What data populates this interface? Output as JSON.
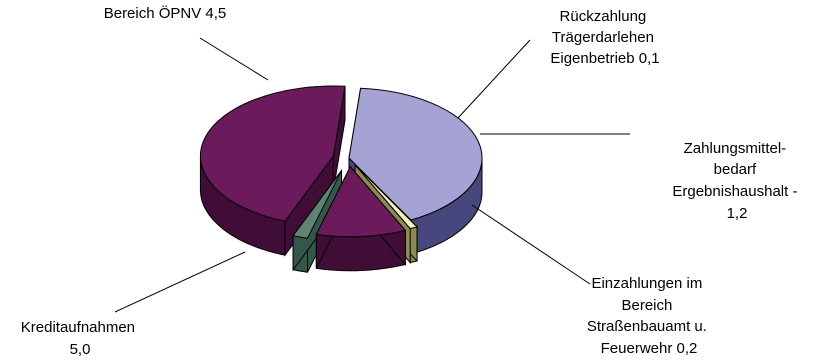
{
  "chart_data": {
    "type": "pie",
    "title": "",
    "slices": [
      {
        "lines": [
          "Bereich ÖPNV 4,5"
        ],
        "value": 4.5,
        "color": "#a5a3d3",
        "side": "#47477d"
      },
      {
        "lines": [
          "Rückzahlung",
          "Trägerdarlehen",
          "Eigenbetrieb 0,1"
        ],
        "value": 0.1,
        "color": "#f3f2bd",
        "side": "#8b8a50"
      },
      {
        "lines": [
          "Zahlungsmittel-",
          "bedarf",
          "Ergebnishaushalt  -",
          "1,2"
        ],
        "value": -1.2,
        "color": "#6b1a5c",
        "side": "#3f0d36"
      },
      {
        "lines": [
          "Einzahlungen im",
          "Bereich",
          "Straßenbauamt u.",
          "Feuerwehr 0,2"
        ],
        "value": 0.2,
        "color": "#5f8475",
        "side": "#33584a"
      },
      {
        "lines": [
          "Kreditaufnahmen",
          "5,0"
        ],
        "value": 5.0,
        "color": "#6b1a5c",
        "side": "#3f0d36"
      }
    ]
  }
}
